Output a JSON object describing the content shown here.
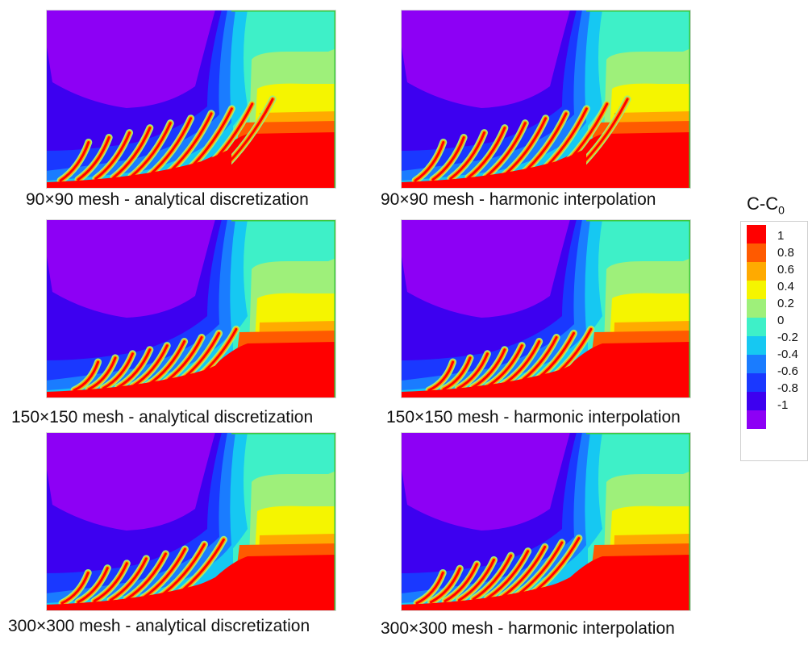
{
  "panels": [
    {
      "caption": "90×90 mesh - analytical discretization"
    },
    {
      "caption": "90×90 mesh - harmonic interpolation"
    },
    {
      "caption": "150×150 mesh - analytical discretization"
    },
    {
      "caption": "150×150 mesh - harmonic interpolation"
    },
    {
      "caption": "300×300 mesh - analytical discretization"
    },
    {
      "caption": "300×300 mesh - harmonic interpolation"
    }
  ],
  "legend": {
    "title_main": "C-C",
    "title_sub": "0",
    "ticks": [
      "1",
      "0.8",
      "0.6",
      "0.4",
      "0.2",
      "0",
      "-0.2",
      "-0.4",
      "-0.6",
      "-0.8",
      "-1"
    ]
  },
  "colors": {
    "c1": "#ff0000",
    "c09": "#ff5a00",
    "c07": "#ffaa00",
    "c05": "#f5f500",
    "c03": "#9ef07a",
    "c01": "#3ef0c8",
    "cm01": "#16c8f2",
    "cm03": "#1a7cff",
    "cm05": "#1a38ff",
    "cm07": "#3d00f0",
    "cm09": "#8d00f5"
  },
  "chart_data": {
    "type": "heatmap",
    "plots": [
      {
        "mesh": "90×90",
        "method": "analytical discretization"
      },
      {
        "mesh": "90×90",
        "method": "harmonic interpolation"
      },
      {
        "mesh": "150×150",
        "method": "analytical discretization"
      },
      {
        "mesh": "150×150",
        "method": "harmonic interpolation"
      },
      {
        "mesh": "300×300",
        "method": "analytical discretization"
      },
      {
        "mesh": "300×300",
        "method": "harmonic interpolation"
      }
    ],
    "colorbar": {
      "label": "C-C0",
      "range": [
        -1,
        1
      ],
      "levels": [
        1,
        0.8,
        0.6,
        0.4,
        0.2,
        0,
        -0.2,
        -0.4,
        -0.6,
        -0.8,
        -1
      ]
    }
  }
}
